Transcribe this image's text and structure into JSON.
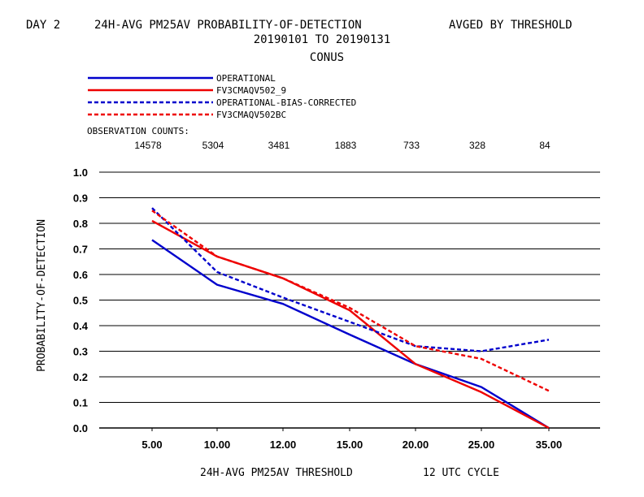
{
  "header": {
    "line1_left": "DAY 2",
    "line1_center": "24H-AVG PM25AV PROBABILITY-OF-DETECTION",
    "line1_right": "AVGED BY THRESHOLD",
    "line2": "20190101 TO 20190131",
    "line3": "CONUS"
  },
  "legend": [
    {
      "label": "OPERATIONAL",
      "color": "#0000cc",
      "style": "solid"
    },
    {
      "label": "FV3CMAQV502_9",
      "color": "#ee0000",
      "style": "solid"
    },
    {
      "label": "OPERATIONAL-BIAS-CORRECTED",
      "color": "#0000cc",
      "style": "dashed"
    },
    {
      "label": "FV3CMAQV502BC",
      "color": "#ee0000",
      "style": "dashed"
    }
  ],
  "observation_counts": {
    "title": "OBSERVATION COUNTS:",
    "values": [
      "14578",
      "5304",
      "3481",
      "1883",
      "733",
      "328",
      "84"
    ]
  },
  "footer": {
    "xlabel": "24H-AVG PM25AV THRESHOLD",
    "cycle": "12 UTC CYCLE"
  },
  "chart_data": {
    "type": "line",
    "categories": [
      "5.00",
      "10.00",
      "12.00",
      "15.00",
      "20.00",
      "25.00",
      "35.00"
    ],
    "ylabel": "PROBABILITY-OF-DETECTION",
    "ylim": [
      0.0,
      1.0
    ],
    "yticks": [
      "0.0",
      "0.1",
      "0.2",
      "0.3",
      "0.4",
      "0.5",
      "0.6",
      "0.7",
      "0.8",
      "0.9",
      "1.0"
    ],
    "grid": "horizontal",
    "series": [
      {
        "name": "OPERATIONAL",
        "values": [
          0.735,
          0.56,
          0.485,
          0.365,
          0.25,
          0.16,
          0.0
        ]
      },
      {
        "name": "FV3CMAQV502_9",
        "values": [
          0.81,
          0.67,
          0.585,
          0.46,
          0.25,
          0.14,
          0.0
        ]
      },
      {
        "name": "OPERATIONAL-BIAS-CORRECTED",
        "values": [
          0.86,
          0.61,
          0.51,
          0.415,
          0.32,
          0.3,
          0.345
        ]
      },
      {
        "name": "FV3CMAQV502BC",
        "values": [
          0.85,
          0.67,
          0.585,
          0.47,
          0.32,
          0.27,
          0.145
        ]
      }
    ]
  }
}
